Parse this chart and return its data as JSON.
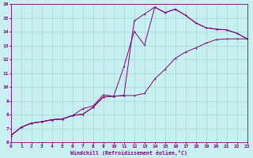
{
  "xlabel": "Windchill (Refroidissement éolien,°C)",
  "bg_color": "#c8f0f0",
  "grid_color": "#a0d8d8",
  "line_color": "#800080",
  "xlim": [
    0,
    23
  ],
  "ylim": [
    6,
    16
  ],
  "xticks": [
    0,
    1,
    2,
    3,
    4,
    5,
    6,
    7,
    8,
    9,
    10,
    11,
    12,
    13,
    14,
    15,
    16,
    17,
    18,
    19,
    20,
    21,
    22,
    23
  ],
  "yticks": [
    6,
    7,
    8,
    9,
    10,
    11,
    12,
    13,
    14,
    15,
    16
  ],
  "line1_x": [
    0,
    1,
    2,
    3,
    4,
    5,
    6,
    7,
    8,
    9,
    10,
    11,
    12,
    13,
    14,
    15,
    16,
    17,
    18,
    19,
    20,
    21,
    22,
    23
  ],
  "line1_y": [
    6.5,
    7.1,
    7.4,
    7.5,
    7.65,
    7.7,
    7.95,
    8.05,
    8.55,
    9.3,
    9.35,
    9.4,
    9.4,
    9.55,
    10.6,
    11.3,
    12.1,
    12.55,
    12.85,
    13.2,
    13.45,
    13.5,
    13.5,
    13.5
  ],
  "line2_x": [
    0,
    1,
    2,
    3,
    4,
    5,
    6,
    7,
    8,
    9,
    10,
    11,
    12,
    13,
    14,
    15,
    16,
    17,
    18,
    19,
    20,
    21,
    22,
    23
  ],
  "line2_y": [
    6.5,
    7.1,
    7.4,
    7.5,
    7.65,
    7.7,
    7.95,
    8.05,
    8.55,
    9.3,
    9.35,
    9.4,
    14.8,
    15.3,
    15.8,
    15.4,
    15.65,
    15.2,
    14.65,
    14.3,
    14.2,
    14.15,
    13.9,
    13.5
  ],
  "line3_x": [
    0,
    1,
    2,
    3,
    4,
    5,
    6,
    7,
    8,
    9,
    10,
    11,
    12,
    13,
    14,
    15,
    16,
    17,
    18,
    19,
    20,
    21,
    22,
    23
  ],
  "line3_y": [
    6.5,
    7.1,
    7.4,
    7.5,
    7.65,
    7.7,
    7.95,
    8.45,
    8.65,
    9.45,
    9.35,
    11.5,
    14.05,
    13.05,
    15.8,
    15.4,
    15.65,
    15.2,
    14.65,
    14.3,
    14.2,
    14.15,
    13.9,
    13.5
  ]
}
